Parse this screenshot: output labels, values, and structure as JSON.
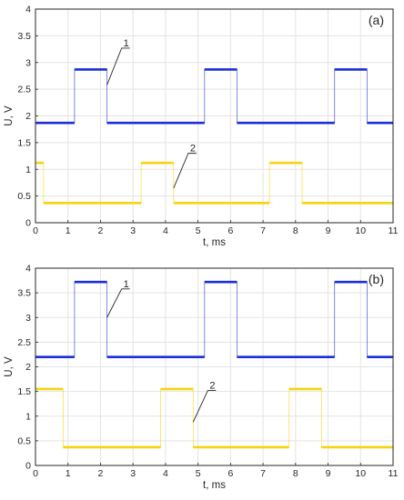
{
  "chart_data": [
    {
      "type": "line",
      "panel_label": "(a)",
      "xlabel": "t, ms",
      "ylabel": "U, V",
      "xlim": [
        0,
        11
      ],
      "ylim": [
        0,
        4
      ],
      "xticks": [
        "0",
        "1",
        "2",
        "3",
        "4",
        "5",
        "6",
        "7",
        "8",
        "9",
        "10",
        "11"
      ],
      "yticks": [
        "0",
        "0.5",
        "1",
        "1.5",
        "2",
        "2.5",
        "3",
        "3.5",
        "4"
      ],
      "grid": true,
      "series": [
        {
          "name": "1",
          "color": "#1a2fd6",
          "x": [
            0,
            1.2,
            1.2,
            2.2,
            2.2,
            5.2,
            5.2,
            6.2,
            6.2,
            9.2,
            9.2,
            10.2,
            10.2,
            11
          ],
          "y": [
            1.87,
            1.87,
            2.87,
            2.87,
            1.87,
            1.87,
            2.87,
            2.87,
            1.87,
            1.87,
            2.87,
            2.87,
            1.87,
            1.87
          ]
        },
        {
          "name": "2",
          "color": "#f5d40f",
          "x": [
            0,
            0.25,
            0.25,
            3.25,
            3.25,
            4.25,
            4.25,
            7.2,
            7.2,
            8.2,
            8.2,
            11
          ],
          "y": [
            1.12,
            1.12,
            0.37,
            0.37,
            1.12,
            1.12,
            0.37,
            0.37,
            1.12,
            1.12,
            0.37,
            0.37
          ]
        }
      ],
      "annotations": [
        {
          "text": "1",
          "x": 2.2,
          "y": 2.58,
          "lx": 2.65,
          "ly": 3.27
        },
        {
          "text": "2",
          "x": 4.25,
          "y": 0.65,
          "lx": 4.7,
          "ly": 1.3
        }
      ]
    },
    {
      "type": "line",
      "panel_label": "(b)",
      "xlabel": "t, ms",
      "ylabel": "U, V",
      "xlim": [
        0,
        11
      ],
      "ylim": [
        0,
        4
      ],
      "xticks": [
        "0",
        "1",
        "2",
        "3",
        "4",
        "5",
        "6",
        "7",
        "8",
        "9",
        "10",
        "11"
      ],
      "yticks": [
        "0",
        "0.5",
        "1",
        "1.5",
        "2",
        "2.5",
        "3",
        "3.5",
        "4"
      ],
      "grid": true,
      "series": [
        {
          "name": "1",
          "color": "#1a2fd6",
          "x": [
            0,
            1.2,
            1.2,
            2.2,
            2.2,
            5.2,
            5.2,
            6.2,
            6.2,
            9.2,
            9.2,
            10.2,
            10.2,
            11
          ],
          "y": [
            2.2,
            2.2,
            3.72,
            3.72,
            2.2,
            2.2,
            3.72,
            3.72,
            2.2,
            2.2,
            3.72,
            3.72,
            2.2,
            2.2
          ]
        },
        {
          "name": "2",
          "color": "#f5d40f",
          "x": [
            0,
            0.85,
            0.85,
            3.85,
            3.85,
            4.85,
            4.85,
            7.8,
            7.8,
            8.8,
            8.8,
            11
          ],
          "y": [
            1.55,
            1.55,
            0.37,
            0.37,
            1.55,
            1.55,
            0.37,
            0.37,
            1.55,
            1.55,
            0.37,
            0.37
          ]
        }
      ],
      "annotations": [
        {
          "text": "1",
          "x": 2.2,
          "y": 3.0,
          "lx": 2.65,
          "ly": 3.58
        },
        {
          "text": "2",
          "x": 4.85,
          "y": 0.88,
          "lx": 5.3,
          "ly": 1.52
        }
      ]
    }
  ]
}
